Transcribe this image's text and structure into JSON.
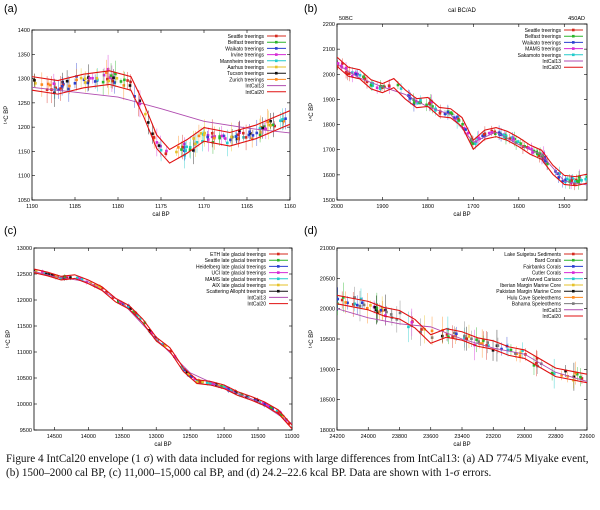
{
  "figure": {
    "caption": "Figure 4    IntCal20 envelope (1 σ) with data included for regions with large differences from IntCal13: (a) AD 774/5 Miyake event, (b) 1500–2000 cal BP, (c) 11,000–15,000 cal BP, and (d) 24.2–22.6 kcal BP. Data are shown with 1-σ errors."
  },
  "chart_data": [
    {
      "panel": "(a)",
      "type": "scatter",
      "xlabel": "cal BP",
      "ylabel": "¹⁴C BP",
      "xlim": [
        1190,
        1160
      ],
      "ylim": [
        1050,
        1400
      ],
      "xticks": [
        1190,
        1185,
        1180,
        1175,
        1170,
        1165,
        1160
      ],
      "yticks": [
        1050,
        1100,
        1150,
        1200,
        1250,
        1300,
        1350,
        1400
      ],
      "legend_position": "top-right",
      "legend": [
        {
          "name": "Seattle treerings",
          "color": "#d62a1e"
        },
        {
          "name": "Belfast treerings",
          "color": "#2bb52b"
        },
        {
          "name": "Waikato treerings",
          "color": "#2a3fcf"
        },
        {
          "name": "Irvine treerings",
          "color": "#d62ad6"
        },
        {
          "name": "Mannheim treerings",
          "color": "#22cccc"
        },
        {
          "name": "Aarhus treerings",
          "color": "#e6c22a"
        },
        {
          "name": "Tucson treerings",
          "color": "#111111"
        },
        {
          "name": "Zurich treerings",
          "color": "#ff8a1c"
        },
        {
          "name": "IntCal13",
          "color": "#b04cb0"
        },
        {
          "name": "IntCal20",
          "color": "#e01010"
        }
      ],
      "intcal13": {
        "x": [
          1190,
          1180,
          1175,
          1170,
          1165,
          1160
        ],
        "y": [
          1282,
          1262,
          1238,
          1212,
          1198,
          1188
        ]
      },
      "intcal20": {
        "x": [
          1190,
          1187,
          1184,
          1181,
          1178.5,
          1177,
          1175.5,
          1174,
          1172,
          1170,
          1167,
          1164,
          1162,
          1160
        ],
        "y": [
          1290,
          1282,
          1295,
          1302,
          1290,
          1235,
          1170,
          1140,
          1160,
          1185,
          1175,
          1190,
          1205,
          1220
        ]
      },
      "band_halfwidth": 14
    },
    {
      "panel": "(b)",
      "type": "scatter",
      "title": "cal BC/AD",
      "top_labels": [
        "50BC",
        "450AD"
      ],
      "xlabel": "cal BP",
      "ylabel": "¹⁴C BP",
      "xlim": [
        2000,
        1450
      ],
      "ylim": [
        1500,
        2200
      ],
      "xticks": [
        2000,
        1900,
        1800,
        1700,
        1600,
        1500
      ],
      "yticks": [
        1500,
        1600,
        1700,
        1800,
        1900,
        2000,
        2100,
        2200
      ],
      "legend_position": "top-right",
      "legend": [
        {
          "name": "Seattle treerings",
          "color": "#d62a1e"
        },
        {
          "name": "Belfast treerings",
          "color": "#2bb52b"
        },
        {
          "name": "Waikato treerings",
          "color": "#2a3fcf"
        },
        {
          "name": "MAMS treerings",
          "color": "#d62ad6"
        },
        {
          "name": "Sakamoto treerings",
          "color": "#22cccc"
        },
        {
          "name": "IntCal13",
          "color": "#b04cb0"
        },
        {
          "name": "IntCal20",
          "color": "#e01010"
        }
      ],
      "intcal13": {
        "x": [
          2000,
          1950,
          1900,
          1850,
          1800,
          1750,
          1700,
          1650,
          1600,
          1550,
          1500,
          1450
        ],
        "y": [
          2040,
          1985,
          1950,
          1920,
          1870,
          1840,
          1730,
          1770,
          1720,
          1680,
          1575,
          1560
        ]
      },
      "intcal20": {
        "x": [
          2000,
          1975,
          1950,
          1925,
          1900,
          1875,
          1850,
          1825,
          1800,
          1775,
          1750,
          1725,
          1700,
          1675,
          1650,
          1625,
          1600,
          1575,
          1550,
          1525,
          1500,
          1475,
          1450
        ],
        "y": [
          2050,
          2010,
          2000,
          1960,
          1945,
          1965,
          1920,
          1885,
          1890,
          1850,
          1845,
          1810,
          1720,
          1760,
          1770,
          1755,
          1730,
          1700,
          1680,
          1620,
          1580,
          1575,
          1585
        ]
      },
      "band_halfwidth": 18
    },
    {
      "panel": "(c)",
      "type": "scatter",
      "xlabel": "cal BP",
      "ylabel": "¹⁴C BP",
      "xlim": [
        14800,
        11000
      ],
      "ylim": [
        9500,
        13000
      ],
      "xticks": [
        14500,
        14000,
        13500,
        13000,
        12500,
        12000,
        11500,
        11000
      ],
      "yticks": [
        9500,
        10000,
        10500,
        11000,
        11500,
        12000,
        12500,
        13000
      ],
      "legend_position": "top-right",
      "legend": [
        {
          "name": "ETH late glacial treerings",
          "color": "#d62a1e"
        },
        {
          "name": "Seattle late glacial treerings",
          "color": "#2bb52b"
        },
        {
          "name": "Heidelberg late glacial treerings",
          "color": "#2a3fcf"
        },
        {
          "name": "UCI late glacial treerings",
          "color": "#d62ad6"
        },
        {
          "name": "MAMS late glacial treerings",
          "color": "#22cccc"
        },
        {
          "name": "AIX late glacial treerings",
          "color": "#e6c22a"
        },
        {
          "name": "Scattering Allopht treerings",
          "color": "#111111"
        },
        {
          "name": "IntCal13",
          "color": "#b04cb0"
        },
        {
          "name": "IntCal20",
          "color": "#e01010"
        }
      ],
      "intcal13": {
        "x": [
          14800,
          14500,
          14000,
          13500,
          13000,
          12500,
          12000,
          11500,
          11000
        ],
        "y": [
          12550,
          12450,
          12350,
          11950,
          11250,
          10600,
          10300,
          10050,
          9620
        ]
      },
      "intcal20": {
        "x": [
          14800,
          14600,
          14400,
          14200,
          14000,
          13800,
          13600,
          13400,
          13200,
          13000,
          12800,
          12600,
          12400,
          12200,
          12000,
          11800,
          11600,
          11400,
          11200,
          11000
        ],
        "y": [
          12560,
          12500,
          12420,
          12450,
          12350,
          12220,
          12000,
          11860,
          11600,
          11250,
          11050,
          10660,
          10430,
          10400,
          10330,
          10200,
          10110,
          10000,
          9850,
          9560
        ]
      },
      "band_halfwidth": 35
    },
    {
      "panel": "(d)",
      "type": "scatter",
      "xlabel": "cal BP",
      "ylabel": "¹⁴C BP",
      "xlim": [
        24200,
        22600
      ],
      "ylim": [
        18000,
        21000
      ],
      "xticks": [
        24200,
        24000,
        23800,
        23600,
        23400,
        23200,
        23000,
        22800,
        22600
      ],
      "yticks": [
        18000,
        18500,
        19000,
        19500,
        20000,
        20500,
        21000
      ],
      "legend_position": "top-right",
      "legend": [
        {
          "name": "Lake Suigetsu Sediments",
          "color": "#d62a1e"
        },
        {
          "name": "Bard Corals",
          "color": "#2bb52b"
        },
        {
          "name": "Fairbanks Corals",
          "color": "#2a3fcf"
        },
        {
          "name": "Cutler Corals",
          "color": "#d62ad6"
        },
        {
          "name": "unVarved Cariaco",
          "color": "#22cccc"
        },
        {
          "name": "Iberian Margin Marine Core",
          "color": "#e6c22a"
        },
        {
          "name": "Pakistan Margin Marine Core",
          "color": "#111111"
        },
        {
          "name": "Hulu Cave Speleothems",
          "color": "#ff8a1c"
        },
        {
          "name": "Bahama Speleothems",
          "color": "#7a7a7a"
        },
        {
          "name": "IntCal13",
          "color": "#b04cb0"
        },
        {
          "name": "IntCal20",
          "color": "#e01010"
        }
      ],
      "intcal13": {
        "x": [
          24200,
          24000,
          23800,
          23600,
          23400,
          23200,
          23000,
          22800,
          22600
        ],
        "y": [
          20000,
          19850,
          19750,
          19700,
          19500,
          19350,
          19250,
          18950,
          18800
        ]
      },
      "intcal20": {
        "x": [
          24200,
          24100,
          24000,
          23900,
          23800,
          23700,
          23600,
          23500,
          23400,
          23300,
          23200,
          23100,
          23000,
          22900,
          22800,
          22700,
          22600
        ],
        "y": [
          20150,
          20100,
          20050,
          19950,
          19900,
          19750,
          19500,
          19600,
          19550,
          19450,
          19400,
          19300,
          19250,
          19100,
          18950,
          18900,
          18850
        ]
      },
      "band_halfwidth": 70
    }
  ]
}
